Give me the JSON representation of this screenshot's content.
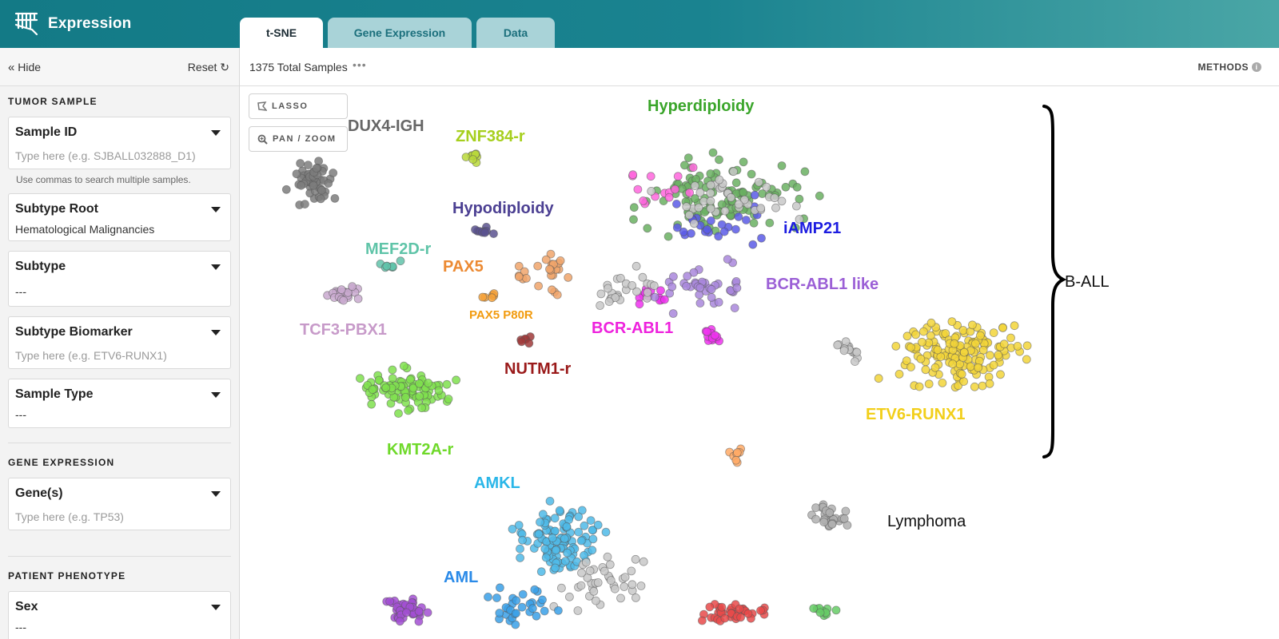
{
  "header": {
    "app_title": "Expression",
    "tabs": [
      {
        "label": "t-SNE",
        "active": true
      },
      {
        "label": "Gene Expression",
        "active": false
      },
      {
        "label": "Data",
        "active": false
      }
    ],
    "colors": {
      "header": "#137a86",
      "tab_inactive": "#a9d3d8"
    }
  },
  "sidebar": {
    "hide_label": "Hide",
    "reset_label": "Reset",
    "sections": {
      "tumor_sample": "TUMOR SAMPLE",
      "gene_expression": "GENE EXPRESSION",
      "patient_phenotype": "PATIENT PHENOTYPE"
    },
    "fields": {
      "sample_id": {
        "label": "Sample ID",
        "placeholder": "Type here (e.g. SJBALL032888_D1)",
        "hint": "Use commas to search multiple samples."
      },
      "subtype_root": {
        "label": "Subtype Root",
        "value": "Hematological Malignancies"
      },
      "subtype": {
        "label": "Subtype",
        "value": "---"
      },
      "subtype_biomarker": {
        "label": "Subtype Biomarker",
        "placeholder": "Type here (e.g. ETV6-RUNX1)"
      },
      "sample_type": {
        "label": "Sample Type",
        "value": "---"
      },
      "genes": {
        "label": "Gene(s)",
        "placeholder": "Type here (e.g. TP53)"
      },
      "sex": {
        "label": "Sex",
        "value": "---"
      }
    }
  },
  "main": {
    "total_samples": "1375 Total Samples",
    "more_icon": "ellipsis-icon",
    "methods_label": "METHODS",
    "tools": {
      "lasso": "LASSO",
      "pan_zoom": "PAN / ZOOM"
    }
  },
  "plot": {
    "bracket_label": "B-ALL",
    "cluster_labels": [
      {
        "text": "DUX4-IGH",
        "color": "#666666"
      },
      {
        "text": "ZNF384-r",
        "color": "#a6cf1d"
      },
      {
        "text": "Hyperdiploidy",
        "color": "#3aa52a"
      },
      {
        "text": "Hypodiploidy",
        "color": "#4b3f92"
      },
      {
        "text": "iAMP21",
        "color": "#1c1ce0"
      },
      {
        "text": "MEF2D-r",
        "color": "#5fc4a8"
      },
      {
        "text": "PAX5",
        "color": "#ec8a33"
      },
      {
        "text": "BCR-ABL1 like",
        "color": "#9b5fd6"
      },
      {
        "text": "TCF3-PBX1",
        "color": "#c79ac9"
      },
      {
        "text": "PAX5 P80R",
        "color": "#f29b0e"
      },
      {
        "text": "BCR-ABL1",
        "color": "#ee22dd"
      },
      {
        "text": "NUTM1-r",
        "color": "#9a1a1a"
      },
      {
        "text": "ETV6-RUNX1",
        "color": "#f2cf1a"
      },
      {
        "text": "KMT2A-r",
        "color": "#6fd92a"
      },
      {
        "text": "AMKL",
        "color": "#2ab6e8"
      },
      {
        "text": "Lymphoma",
        "color": "#111111"
      },
      {
        "text": "AML",
        "color": "#2a8ae8"
      }
    ]
  }
}
